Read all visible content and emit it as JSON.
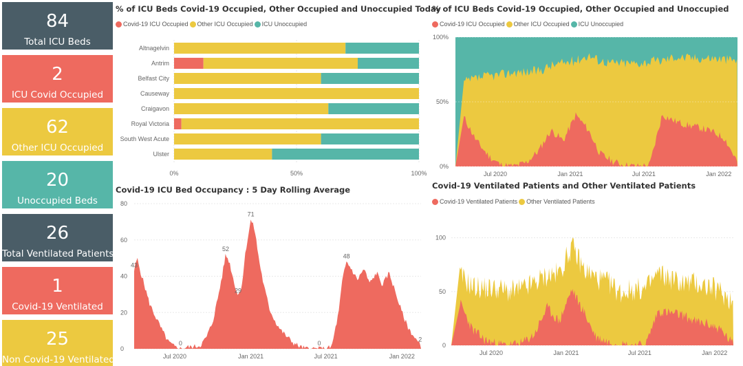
{
  "colors": {
    "covid": "#ee6a5f",
    "other": "#ecc940",
    "unoccupied": "#56b6a8",
    "slate": "#4a5d67"
  },
  "kpis": [
    {
      "value": "84",
      "label": "Total ICU Beds",
      "color": "slate"
    },
    {
      "value": "2",
      "label": "ICU Covid Occupied",
      "color": "red"
    },
    {
      "value": "62",
      "label": "Other ICU Occupied",
      "color": "yellow"
    },
    {
      "value": "20",
      "label": "Unoccupied Beds",
      "color": "teal"
    },
    {
      "value": "26",
      "label": "Total Ventilated Patients",
      "color": "slate"
    },
    {
      "value": "1",
      "label": "Covid-19 Ventilated",
      "color": "red"
    },
    {
      "value": "25",
      "label": "Non Covid-19 Ventilated",
      "color": "yellow"
    }
  ],
  "chart_data": [
    {
      "type": "bar",
      "orientation": "horizontal",
      "stacked": "100%",
      "title": "% of ICU Beds Covid-19 Occupied, Other Occupied and Unoccupied Today",
      "legend": [
        "Covid-19 ICU Occupied",
        "Other ICU Occupied",
        "ICU Unoccupied"
      ],
      "categories": [
        "Altnagelvin",
        "Antrim",
        "Belfast City",
        "Causeway",
        "Craigavon",
        "Royal Victoria",
        "South West Acute",
        "Ulster"
      ],
      "series": [
        {
          "name": "Covid-19 ICU Occupied",
          "values": [
            0,
            12,
            0,
            0,
            0,
            3,
            0,
            0
          ]
        },
        {
          "name": "Other ICU Occupied",
          "values": [
            70,
            63,
            60,
            100,
            63,
            97,
            60,
            40
          ]
        },
        {
          "name": "ICU Unoccupied",
          "values": [
            30,
            25,
            40,
            0,
            37,
            0,
            40,
            60
          ]
        }
      ],
      "x_ticks": [
        "0%",
        "50%",
        "100%"
      ],
      "xlim": [
        0,
        100
      ]
    },
    {
      "type": "area",
      "stacked": "100%",
      "title": "% of ICU Beds Covid-19 Occupied, Other Occupied and Unoccupied",
      "legend": [
        "Covid-19 ICU Occupied",
        "Other ICU Occupied",
        "ICU Unoccupied"
      ],
      "x": [
        "2020-04",
        "2020-05",
        "2020-06",
        "2020-07",
        "2020-08",
        "2020-09",
        "2020-10",
        "2020-11",
        "2020-12",
        "2021-01",
        "2021-02",
        "2021-03",
        "2021-04",
        "2021-05",
        "2021-06",
        "2021-07",
        "2021-08",
        "2021-09",
        "2021-10",
        "2021-11",
        "2021-12",
        "2022-01",
        "2022-02"
      ],
      "series": [
        {
          "name": "Covid-19 ICU Occupied",
          "values": [
            38,
            20,
            8,
            1,
            0,
            3,
            12,
            28,
            20,
            40,
            28,
            10,
            4,
            1,
            0,
            1,
            40,
            35,
            32,
            30,
            27,
            22,
            4
          ]
        },
        {
          "name": "Other ICU Occupied",
          "values": [
            27,
            48,
            62,
            70,
            73,
            70,
            62,
            50,
            60,
            42,
            58,
            72,
            76,
            79,
            80,
            80,
            42,
            50,
            52,
            54,
            57,
            61,
            78
          ]
        },
        {
          "name": "ICU Unoccupied",
          "values": [
            35,
            32,
            30,
            29,
            27,
            27,
            26,
            22,
            20,
            18,
            14,
            18,
            20,
            20,
            20,
            19,
            18,
            15,
            16,
            16,
            16,
            17,
            18
          ]
        }
      ],
      "x_ticks": [
        "Jul 2020",
        "Jan 2021",
        "Jul 2021",
        "Jan 2022"
      ],
      "y_ticks": [
        "0%",
        "50%",
        "100%"
      ],
      "ylim": [
        0,
        100
      ]
    },
    {
      "type": "area",
      "title": "Covid-19 ICU Bed Occupancy : 5 Day Rolling Average",
      "x": [
        "2020-03-25",
        "2020-04-01",
        "2020-04-10",
        "2020-04-20",
        "2020-05-01",
        "2020-05-15",
        "2020-06-01",
        "2020-06-15",
        "2020-07-01",
        "2020-07-15",
        "2020-08-01",
        "2020-08-15",
        "2020-09-01",
        "2020-09-15",
        "2020-10-01",
        "2020-10-15",
        "2020-10-25",
        "2020-11-01",
        "2020-11-10",
        "2020-11-20",
        "2020-12-01",
        "2020-12-10",
        "2020-12-20",
        "2021-01-01",
        "2021-01-10",
        "2021-01-20",
        "2021-02-01",
        "2021-02-15",
        "2021-03-01",
        "2021-03-15",
        "2021-04-01",
        "2021-04-15",
        "2021-05-01",
        "2021-05-15",
        "2021-06-01",
        "2021-06-15",
        "2021-07-01",
        "2021-07-15",
        "2021-08-01",
        "2021-08-10",
        "2021-08-20",
        "2021-09-01",
        "2021-09-15",
        "2021-10-01",
        "2021-10-15",
        "2021-11-01",
        "2021-11-15",
        "2021-12-01",
        "2021-12-15",
        "2022-01-01",
        "2022-01-15",
        "2022-02-01",
        "2022-02-14"
      ],
      "values": [
        43,
        50,
        42,
        34,
        25,
        18,
        10,
        4,
        1,
        0,
        1,
        1,
        2,
        6,
        15,
        30,
        42,
        52,
        48,
        38,
        29,
        35,
        55,
        71,
        66,
        50,
        35,
        22,
        15,
        10,
        6,
        3,
        1,
        0,
        0,
        0,
        0,
        1,
        20,
        38,
        48,
        44,
        38,
        44,
        36,
        42,
        35,
        42,
        32,
        20,
        12,
        6,
        2
      ],
      "data_labels": [
        {
          "x": "2020-03-25",
          "label": "43"
        },
        {
          "x": "2020-07-15",
          "label": "0"
        },
        {
          "x": "2020-11-01",
          "label": "52"
        },
        {
          "x": "2020-12-01",
          "label": "29"
        },
        {
          "x": "2021-01-01",
          "label": "71"
        },
        {
          "x": "2021-06-15",
          "label": "0"
        },
        {
          "x": "2021-08-20",
          "label": "48"
        },
        {
          "x": "2022-02-14",
          "label": "2"
        }
      ],
      "x_ticks": [
        "Jul 2020",
        "Jan 2021",
        "Jul 2021",
        "Jan 2022"
      ],
      "y_ticks": [
        "0",
        "20",
        "40",
        "60",
        "80"
      ],
      "ylim": [
        0,
        80
      ]
    },
    {
      "type": "area",
      "stacked": true,
      "title": "Covid-19 Ventilated Patients and Other Ventilated Patients",
      "legend": [
        "Covid-19 Ventilated Patients",
        "Other Ventilated Patients"
      ],
      "x": [
        "2020-04",
        "2020-05",
        "2020-06",
        "2020-07",
        "2020-08",
        "2020-09",
        "2020-10",
        "2020-11",
        "2020-12",
        "2021-01",
        "2021-02",
        "2021-03",
        "2021-04",
        "2021-05",
        "2021-06",
        "2021-07",
        "2021-08",
        "2021-09",
        "2021-10",
        "2021-11",
        "2021-12",
        "2022-01",
        "2022-02"
      ],
      "series": [
        {
          "name": "Covid-19 Ventilated Patients",
          "values": [
            40,
            15,
            5,
            1,
            0,
            2,
            10,
            35,
            22,
            52,
            30,
            8,
            3,
            1,
            0,
            0,
            32,
            30,
            28,
            22,
            20,
            15,
            1
          ]
        },
        {
          "name": "Other Ventilated Patients",
          "values": [
            25,
            40,
            48,
            52,
            50,
            50,
            48,
            30,
            45,
            40,
            40,
            55,
            55,
            48,
            52,
            52,
            35,
            32,
            30,
            36,
            35,
            35,
            40
          ]
        }
      ],
      "x_ticks": [
        "Jul 2020",
        "Jan 2021",
        "Jul 2021",
        "Jan 2022"
      ],
      "y_ticks": [
        "0",
        "50",
        "100"
      ],
      "ylim": [
        0,
        110
      ]
    }
  ]
}
